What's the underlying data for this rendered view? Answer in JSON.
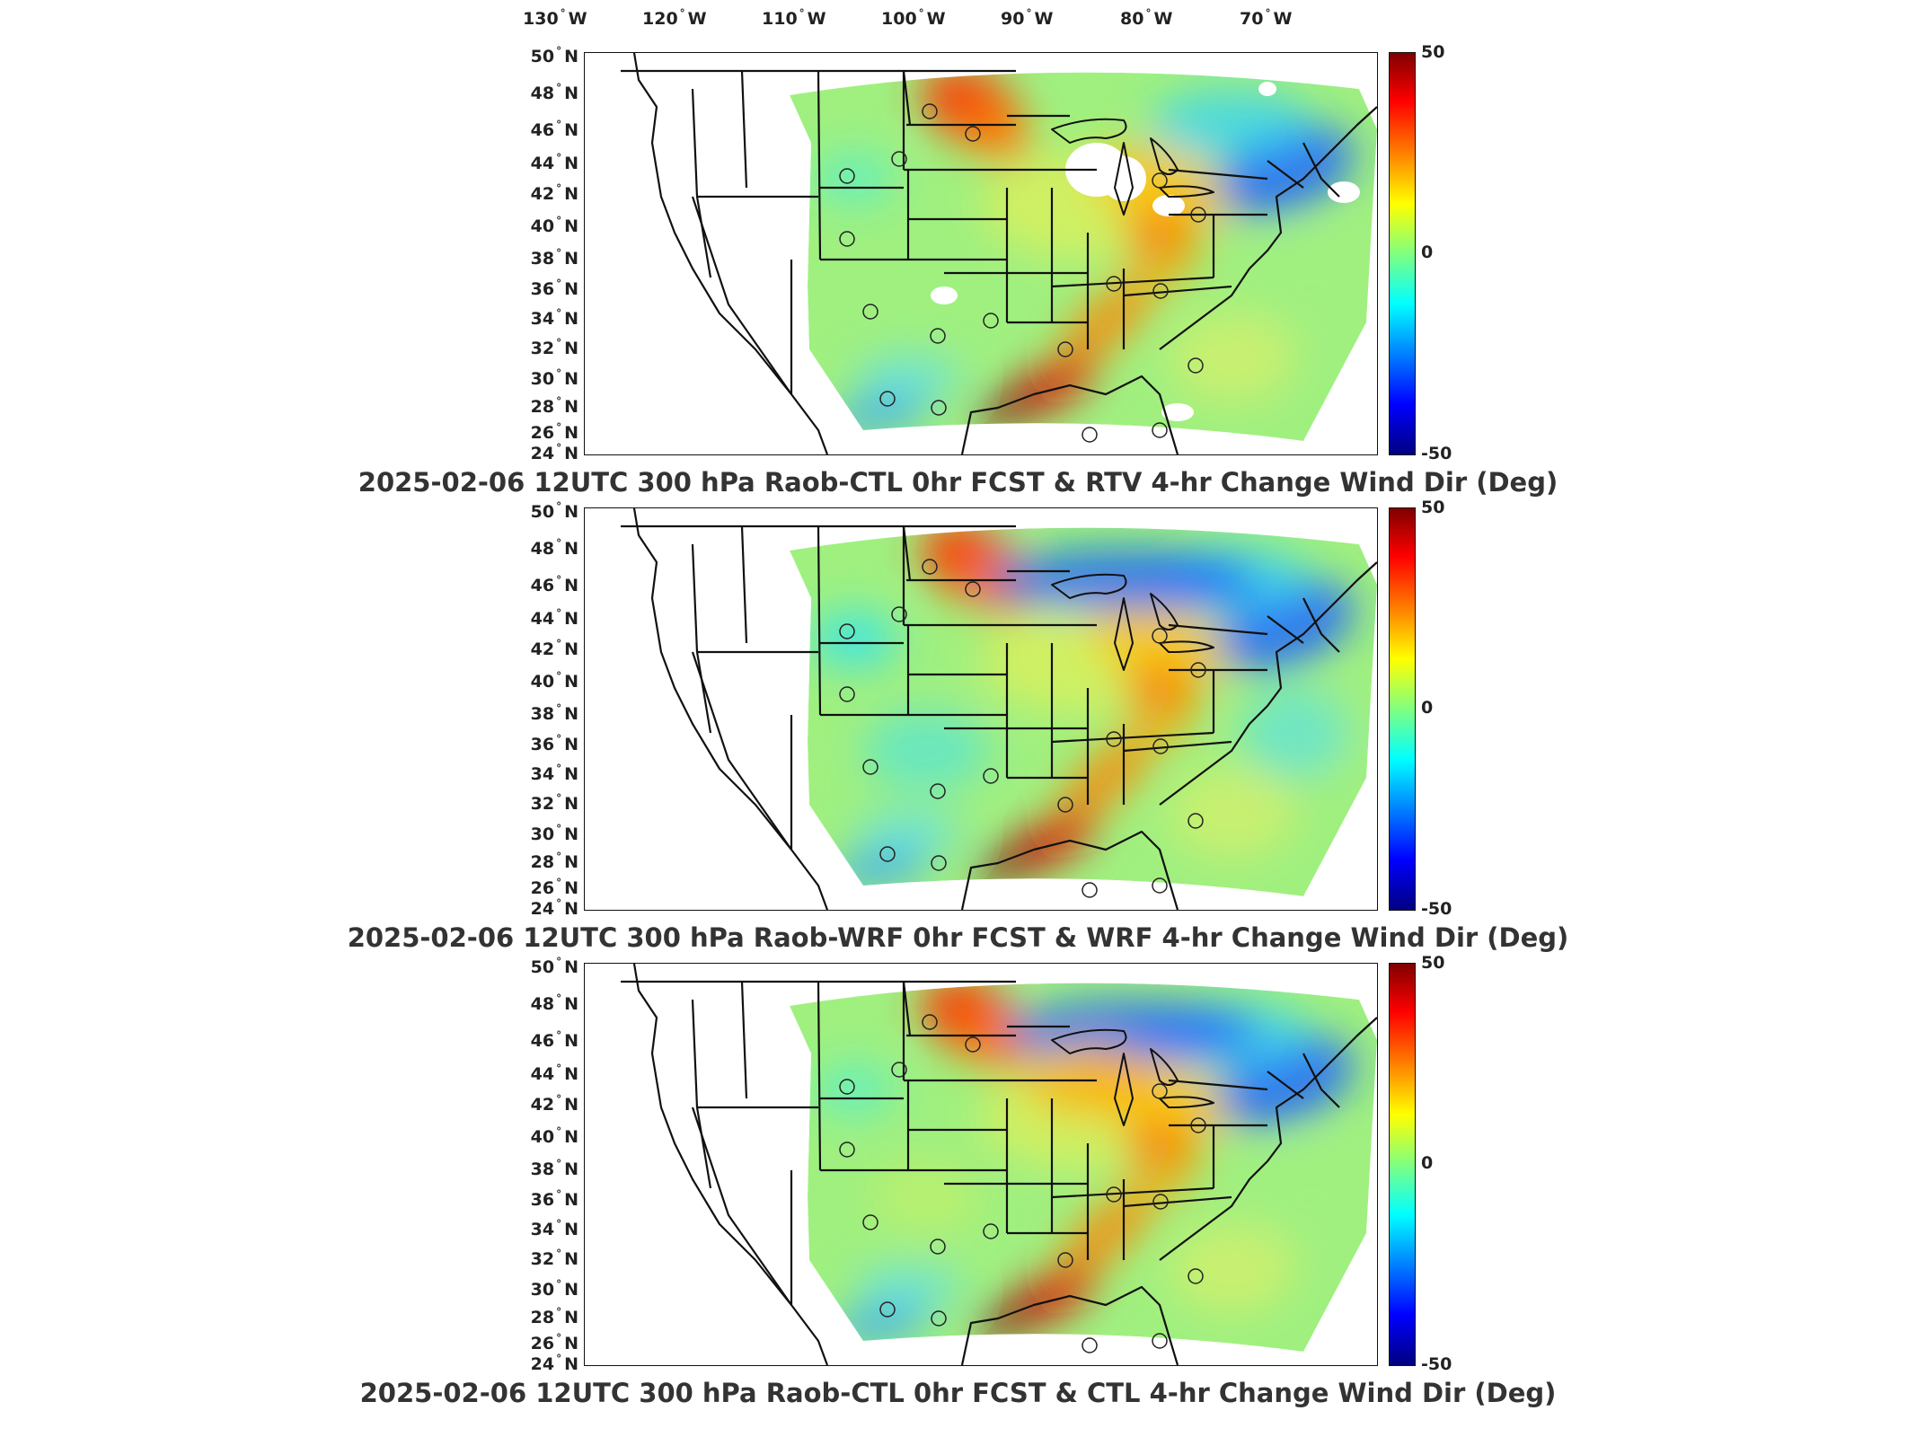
{
  "lon_labels": [
    {
      "value": "130",
      "dir": "W"
    },
    {
      "value": "120",
      "dir": "W"
    },
    {
      "value": "110",
      "dir": "W"
    },
    {
      "value": "100",
      "dir": "W"
    },
    {
      "value": "90",
      "dir": "W"
    },
    {
      "value": "80",
      "dir": "W"
    },
    {
      "value": "70",
      "dir": "W"
    }
  ],
  "lat_labels": [
    {
      "value": "50",
      "dir": "N"
    },
    {
      "value": "48",
      "dir": "N"
    },
    {
      "value": "46",
      "dir": "N"
    },
    {
      "value": "44",
      "dir": "N"
    },
    {
      "value": "42",
      "dir": "N"
    },
    {
      "value": "40",
      "dir": "N"
    },
    {
      "value": "38",
      "dir": "N"
    },
    {
      "value": "36",
      "dir": "N"
    },
    {
      "value": "34",
      "dir": "N"
    },
    {
      "value": "32",
      "dir": "N"
    },
    {
      "value": "30",
      "dir": "N"
    },
    {
      "value": "28",
      "dir": "N"
    },
    {
      "value": "26",
      "dir": "N"
    },
    {
      "value": "24",
      "dir": "N"
    }
  ],
  "degree_symbol": "°",
  "colorbar": {
    "max": "50",
    "mid": "0",
    "min": "-50",
    "colormap": "jet"
  },
  "panels": [
    {
      "title": "2025-02-06 12UTC 300 hPa Raob-CTL 0hr FCST & RTV 4-hr Change Wind Dir (Deg)"
    },
    {
      "title": "2025-02-06 12UTC 300 hPa Raob-WRF 0hr FCST & WRF 4-hr Change Wind Dir (Deg)"
    },
    {
      "title": "2025-02-06 12UTC 300 hPa Raob-CTL 0hr FCST & CTL 4-hr Change Wind Dir (Deg)"
    }
  ],
  "colors": {
    "dark_red": "#800000",
    "red": "#ff2000",
    "orange": "#ff9000",
    "yellow": "#f0f040",
    "green": "#90f070",
    "cyan": "#30e0f0",
    "blue": "#2070ff",
    "dark_blue": "#0010a0"
  }
}
